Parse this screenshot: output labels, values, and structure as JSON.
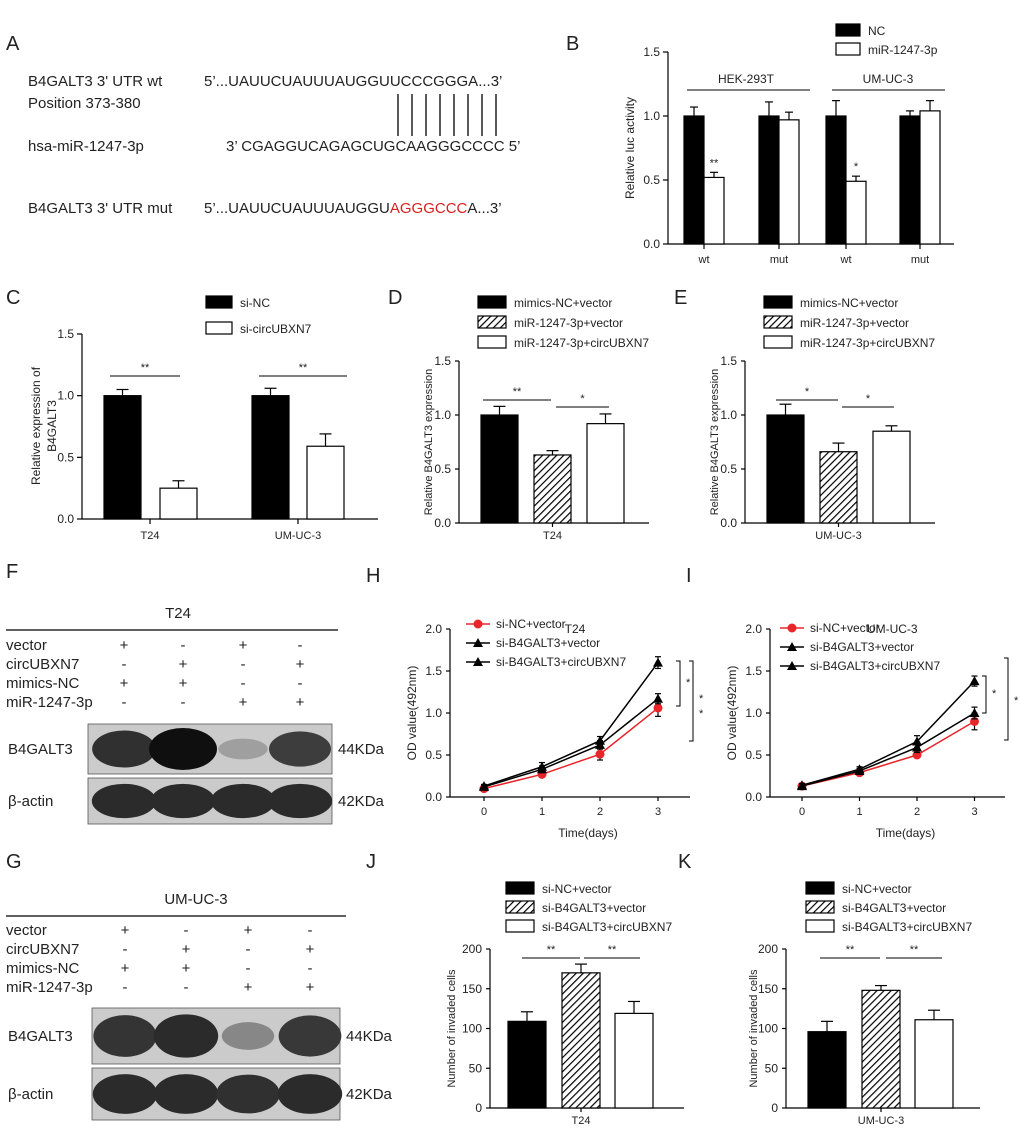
{
  "panel_letters": [
    "A",
    "B",
    "C",
    "D",
    "E",
    "F",
    "G",
    "H",
    "I",
    "J",
    "K"
  ],
  "panelA": {
    "row1_label": "B4GALT3 3' UTR wt",
    "row1_seq": "5’...UAUUCUAUUUAUGGUUCCCGGGA...3’",
    "position": "Position 373-380",
    "row2_label": "hsa-miR-1247-3p",
    "row2_seq": "3’ CGAGGUCAGAGCUGCAAGGGCCCC 5’",
    "row3_label": "B4GALT3 3' UTR mut",
    "row3_seq_black": "5’...UAUUCUAUUUAUGGU",
    "row3_seq_red": "AGGGCCC",
    "row3_seq_end": "A...3’",
    "mut_color": "#d6201f"
  },
  "chart_data": [
    {
      "panel": "B",
      "type": "bar",
      "ylabel": "Relative luc activity",
      "ylim": [
        0,
        1.5
      ],
      "yticks": [
        "0.0",
        "0.5",
        "1.0",
        "1.5"
      ],
      "categories": [
        "wt",
        "mut",
        "wt",
        "mut"
      ],
      "groups": [
        "HEK-293T",
        "UM-UC-3"
      ],
      "series": [
        {
          "name": "NC",
          "values": [
            1.0,
            1.0,
            1.0,
            1.0
          ],
          "errors": [
            0.07,
            0.11,
            0.12,
            0.04
          ],
          "fill": "#000000"
        },
        {
          "name": "miR-1247-3p",
          "values": [
            0.52,
            0.97,
            0.49,
            1.04
          ],
          "errors": [
            0.04,
            0.06,
            0.04,
            0.08
          ],
          "fill": "#ffffff"
        }
      ],
      "annotations": [
        "**",
        "",
        "*",
        ""
      ]
    },
    {
      "panel": "C",
      "type": "bar",
      "ylabel": "Relative expression of B4GALT3",
      "ylim": [
        0,
        1.5
      ],
      "yticks": [
        "0.0",
        "0.5",
        "1.0",
        "1.5"
      ],
      "categories": [
        "T24",
        "UM-UC-3"
      ],
      "series": [
        {
          "name": "si-NC",
          "values": [
            1.0,
            1.0
          ],
          "errors": [
            0.05,
            0.06
          ],
          "fill": "#000000"
        },
        {
          "name": "si-circUBXN7",
          "values": [
            0.25,
            0.59
          ],
          "errors": [
            0.06,
            0.1
          ],
          "fill": "#ffffff"
        }
      ],
      "significance": [
        "**",
        "**"
      ]
    },
    {
      "panel": "D",
      "type": "bar",
      "ylabel": "Relative B4GALT3 expression",
      "xlabel": "T24",
      "ylim": [
        0,
        1.5
      ],
      "yticks": [
        "0.0",
        "0.5",
        "1.0",
        "1.5"
      ],
      "categories": [
        "mimics-NC+vector",
        "miR-1247-3p+vector",
        "miR-1247-3p+circUBXN7"
      ],
      "values": [
        1.0,
        0.63,
        0.92
      ],
      "errors": [
        0.08,
        0.04,
        0.09
      ],
      "significance": [
        "**",
        "*"
      ]
    },
    {
      "panel": "E",
      "type": "bar",
      "ylabel": "Relative B4GALT3 expression",
      "xlabel": "UM-UC-3",
      "ylim": [
        0,
        1.5
      ],
      "yticks": [
        "0.0",
        "0.5",
        "1.0",
        "1.5"
      ],
      "categories": [
        "mimics-NC+vector",
        "miR-1247-3p+vector",
        "miR-1247-3p+circUBXN7"
      ],
      "values": [
        1.0,
        0.66,
        0.85
      ],
      "errors": [
        0.1,
        0.08,
        0.05
      ],
      "significance": [
        "*",
        "*"
      ]
    },
    {
      "panel": "H",
      "type": "line",
      "title": "T24",
      "xlabel": "Time(days)",
      "ylabel": "OD value(492nm)",
      "x": [
        0,
        1,
        2,
        3
      ],
      "xticks": [
        "0",
        "1",
        "2",
        "3"
      ],
      "ylim": [
        0,
        2.0
      ],
      "yticks": [
        "0.0",
        "0.5",
        "1.0",
        "1.5",
        "2.0"
      ],
      "series": [
        {
          "name": "si-NC+vector",
          "values": [
            0.1,
            0.27,
            0.51,
            1.06
          ],
          "errors": [
            0.02,
            0.03,
            0.07,
            0.1
          ],
          "color": "#e8262a",
          "marker": "circle"
        },
        {
          "name": "si-B4GALT3+vector",
          "values": [
            0.12,
            0.33,
            0.62,
            1.17
          ],
          "errors": [
            0.02,
            0.04,
            0.05,
            0.06
          ],
          "color": "#000000",
          "marker": "triangle"
        },
        {
          "name": "si-B4GALT3+circUBXN7",
          "values": [
            0.13,
            0.36,
            0.67,
            1.6
          ],
          "errors": [
            0.02,
            0.05,
            0.05,
            0.07
          ],
          "color": "#000000",
          "marker": "triangle"
        }
      ],
      "significance": [
        "*",
        "*",
        "*"
      ]
    },
    {
      "panel": "I",
      "type": "line",
      "title": "UM-UC-3",
      "xlabel": "Time(days)",
      "ylabel": "OD value(492nm)",
      "x": [
        0,
        1,
        2,
        3
      ],
      "xticks": [
        "0",
        "1",
        "2",
        "3"
      ],
      "ylim": [
        0,
        2.0
      ],
      "yticks": [
        "0.0",
        "0.5",
        "1.0",
        "1.5",
        "2.0"
      ],
      "series": [
        {
          "name": "si-NC+vector",
          "values": [
            0.13,
            0.29,
            0.5,
            0.9
          ],
          "errors": [
            0.02,
            0.03,
            0.03,
            0.1
          ],
          "color": "#e8262a",
          "marker": "circle"
        },
        {
          "name": "si-B4GALT3+vector",
          "values": [
            0.13,
            0.31,
            0.59,
            1.0
          ],
          "errors": [
            0.02,
            0.03,
            0.06,
            0.07
          ],
          "color": "#000000",
          "marker": "triangle"
        },
        {
          "name": "si-B4GALT3+circUBXN7",
          "values": [
            0.14,
            0.33,
            0.66,
            1.38
          ],
          "errors": [
            0.02,
            0.03,
            0.07,
            0.06
          ],
          "color": "#000000",
          "marker": "triangle"
        }
      ],
      "significance": [
        "*",
        "*"
      ]
    },
    {
      "panel": "J",
      "type": "bar",
      "ylabel": "Number of invaded cells",
      "xlabel": "T24",
      "ylim": [
        0,
        200
      ],
      "yticks": [
        "0",
        "50",
        "100",
        "150",
        "200"
      ],
      "categories": [
        "si-NC+vector",
        "si-B4GALT3+vector",
        "si-B4GALT3+circUBXN7"
      ],
      "values": [
        109,
        170,
        119
      ],
      "errors": [
        12,
        11,
        15
      ],
      "significance": [
        "**",
        "**"
      ]
    },
    {
      "panel": "K",
      "type": "bar",
      "ylabel": "Number of invaded cells",
      "xlabel": "UM-UC-3",
      "ylim": [
        0,
        200
      ],
      "yticks": [
        "0",
        "50",
        "100",
        "150",
        "200"
      ],
      "categories": [
        "si-NC+vector",
        "si-B4GALT3+vector",
        "si-B4GALT3+circUBXN7"
      ],
      "values": [
        96,
        148,
        111
      ],
      "errors": [
        13,
        6,
        12
      ],
      "significance": [
        "**",
        "**"
      ]
    }
  ],
  "westerns": [
    {
      "panel": "F",
      "title": "T24",
      "rows": [
        {
          "label": "vector",
          "signs": [
            "+",
            "-",
            "+",
            "-"
          ]
        },
        {
          "label": "circUBXN7",
          "signs": [
            "-",
            "+",
            "-",
            "+"
          ]
        },
        {
          "label": "mimics-NC",
          "signs": [
            "+",
            "+",
            "-",
            "-"
          ]
        },
        {
          "label": "miR-1247-3p",
          "signs": [
            "-",
            "-",
            "+",
            "+"
          ]
        }
      ],
      "bands": [
        {
          "label": "B4GALT3",
          "kda": "44KDa",
          "intensity": [
            0.82,
            1.0,
            0.22,
            0.75
          ]
        },
        {
          "label": "β-actin",
          "kda": "42KDa",
          "intensity": [
            0.85,
            0.85,
            0.85,
            0.85
          ]
        }
      ]
    },
    {
      "panel": "G",
      "title": "UM-UC-3",
      "rows": [
        {
          "label": "vector",
          "signs": [
            "+",
            "-",
            "+",
            "-"
          ]
        },
        {
          "label": "circUBXN7",
          "signs": [
            "-",
            "+",
            "-",
            "+"
          ]
        },
        {
          "label": "mimics-NC",
          "signs": [
            "+",
            "+",
            "-",
            "-"
          ]
        },
        {
          "label": "miR-1247-3p",
          "signs": [
            "-",
            "-",
            "+",
            "+"
          ]
        }
      ],
      "bands": [
        {
          "label": "B4GALT3",
          "kda": "44KDa",
          "intensity": [
            0.8,
            0.85,
            0.35,
            0.78
          ]
        },
        {
          "label": "β-actin",
          "kda": "42KDa",
          "intensity": [
            0.85,
            0.85,
            0.82,
            0.85
          ]
        }
      ]
    }
  ]
}
